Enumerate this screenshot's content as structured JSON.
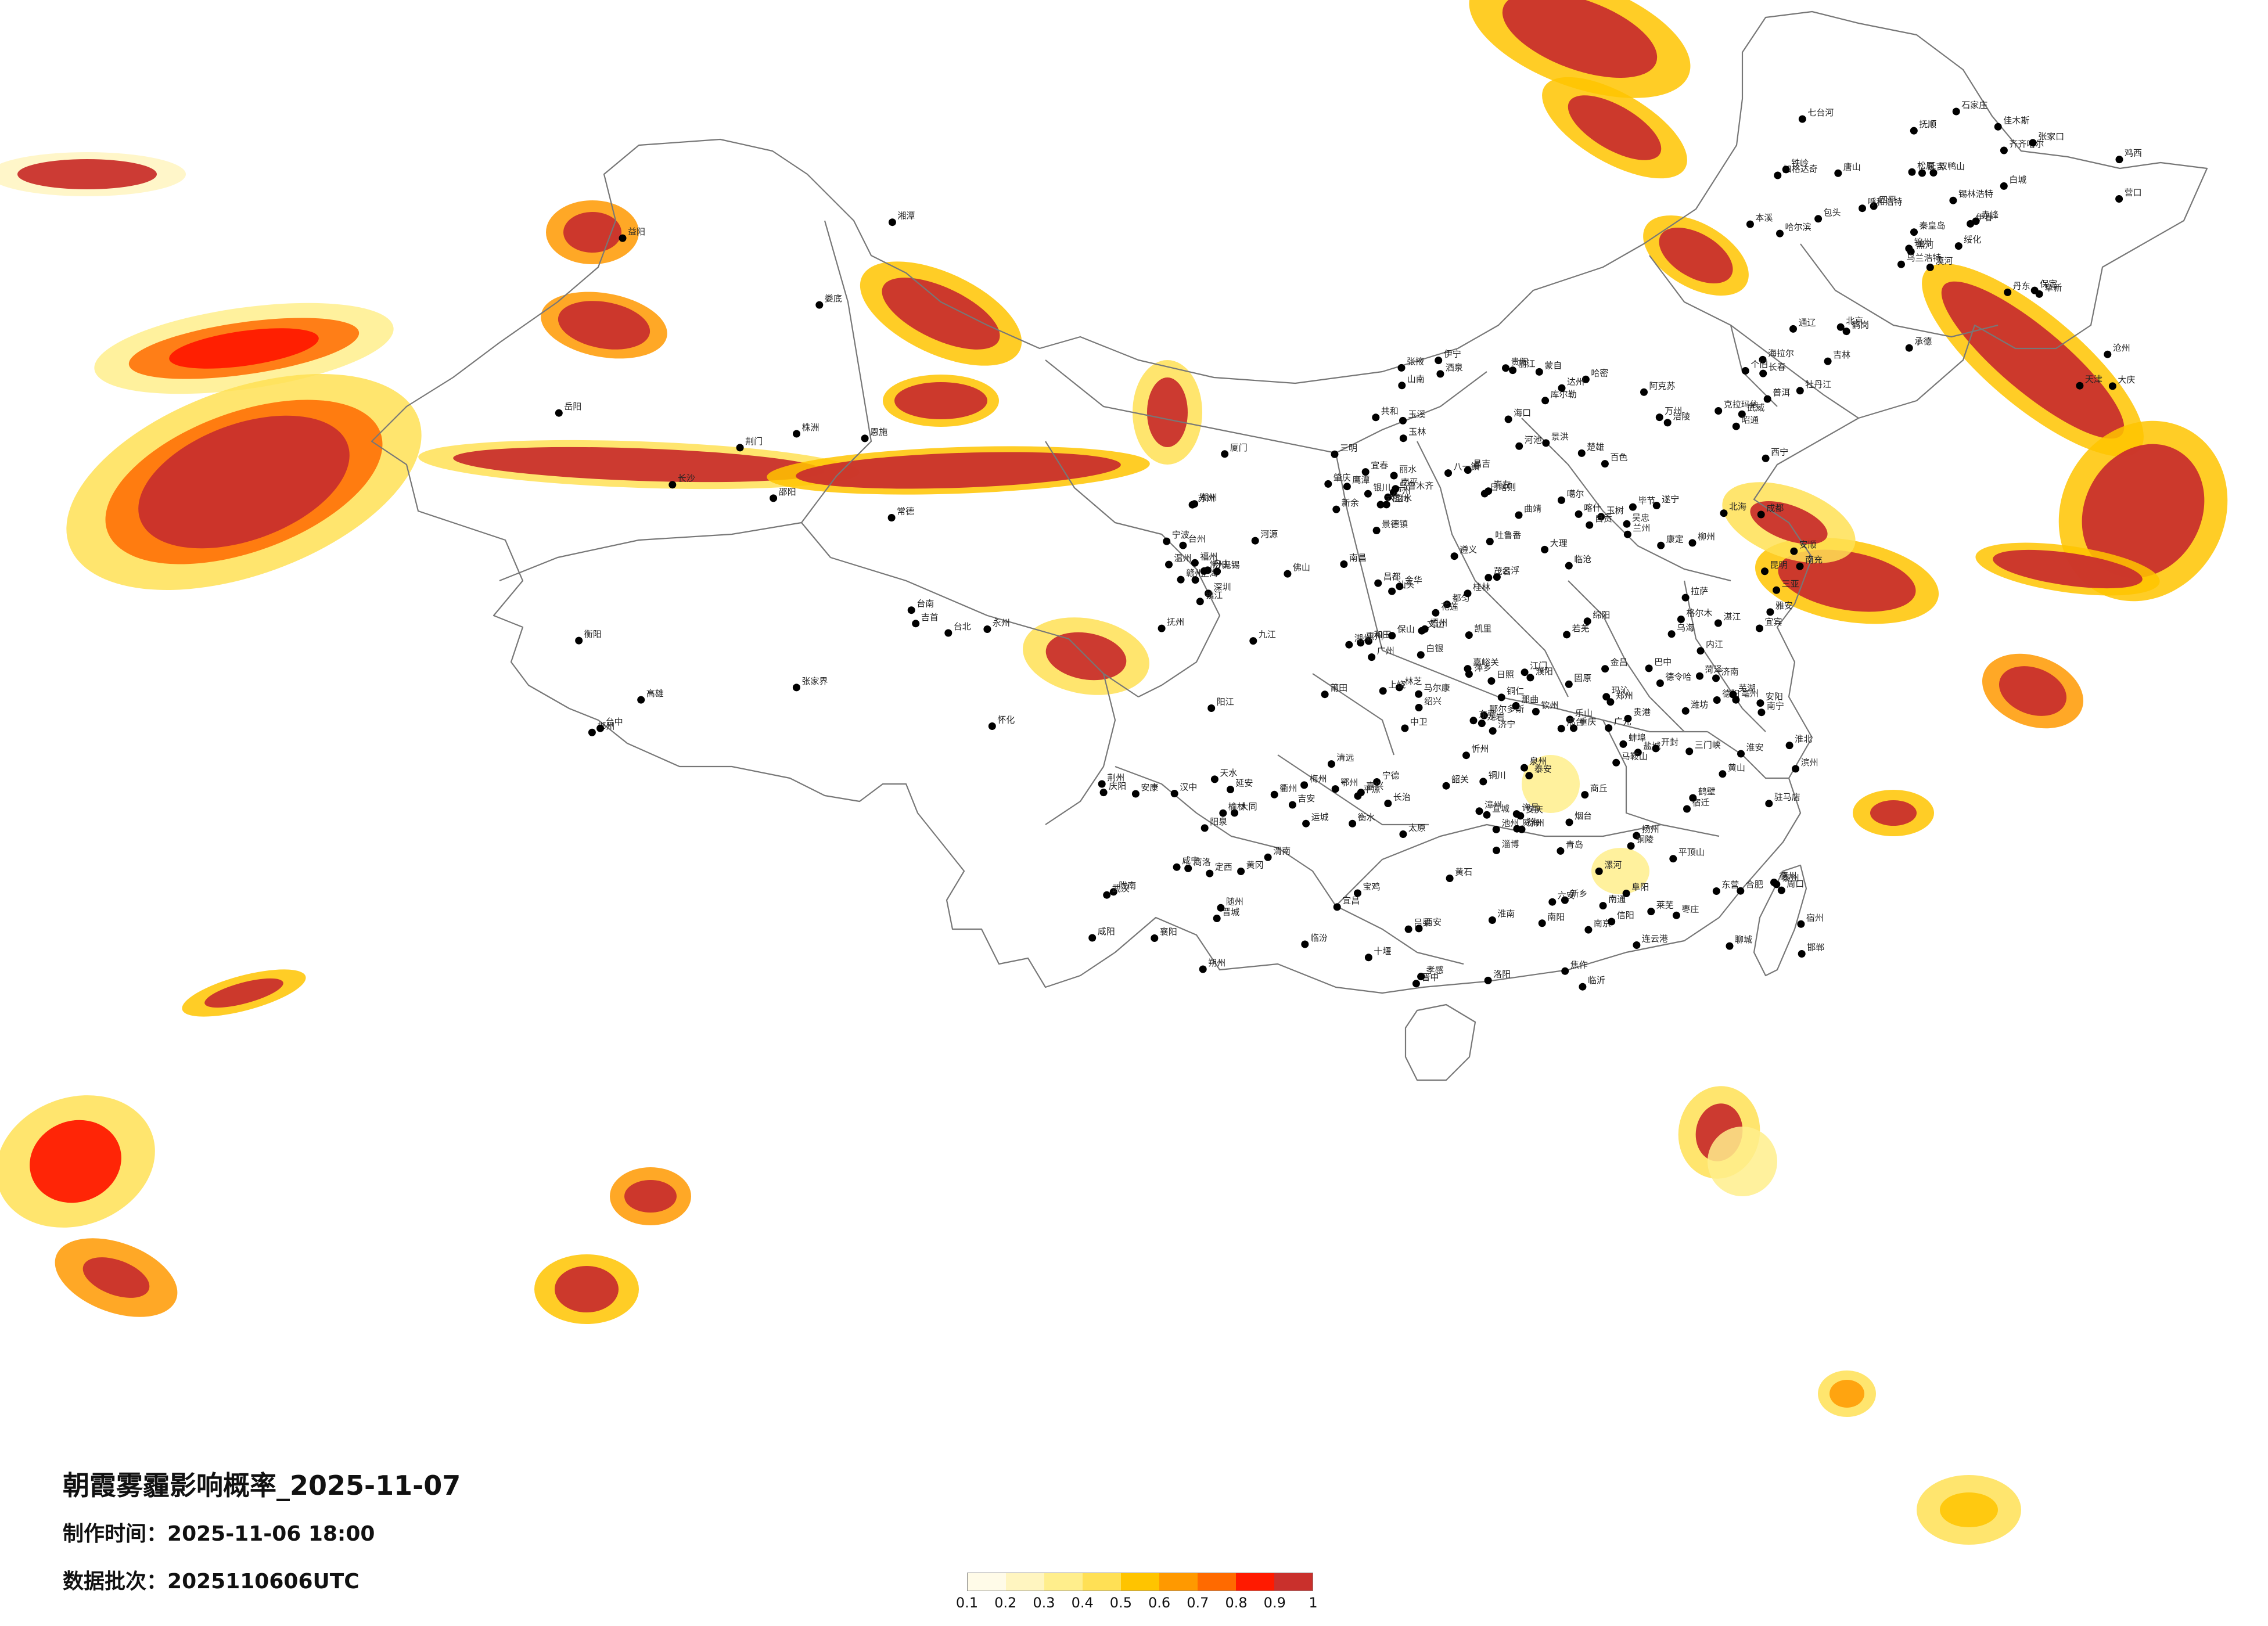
{
  "title": "朝霞雾霾影响概率_2025-11-07",
  "made_time_label": "制作时间：",
  "made_time_value": "2025-11-06 18:00",
  "batch_label": "数据批次：",
  "batch_value": "2025110606UTC",
  "legend": {
    "colors": [
      "#fffbe8",
      "#fff5c0",
      "#ffee8c",
      "#ffe055",
      "#ffc400",
      "#ff9900",
      "#ff6a00",
      "#ff1a00",
      "#c9302c"
    ],
    "ticks": [
      "0.1",
      "0.2",
      "0.3",
      "0.4",
      "0.5",
      "0.6",
      "0.7",
      "0.8",
      "0.9",
      "1"
    ]
  },
  "map": {
    "background": "#ffffff",
    "border_color": "#777777",
    "city_marker_color": "#000000",
    "cities": [
      "漠河",
      "加格达奇",
      "黑河",
      "海拉尔",
      "伊春",
      "鹤岗",
      "佳木斯",
      "双鸭山",
      "齐齐哈尔",
      "绥化",
      "七台河",
      "大庆",
      "哈尔滨",
      "鸡西",
      "乌兰浩特",
      "白城",
      "牡丹江",
      "松原",
      "锡林浩特",
      "通辽",
      "四平",
      "长春",
      "吉林",
      "延吉",
      "赤峰",
      "阜新",
      "铁岭",
      "抚顺",
      "本溪",
      "丹东",
      "营口",
      "锦州",
      "承德",
      "秦皇岛",
      "唐山",
      "张家口",
      "北京",
      "天津",
      "沧州",
      "保定",
      "石家庄",
      "呼和浩特",
      "包头",
      "乌海",
      "鄂尔多斯",
      "银川",
      "吴忠",
      "中卫",
      "固原",
      "兰州",
      "白银",
      "西宁",
      "共和",
      "格尔木",
      "德令哈",
      "嘉峪关",
      "酒泉",
      "张掖",
      "金昌",
      "武威",
      "哈密",
      "吐鲁番",
      "乌鲁木齐",
      "昌吉",
      "克拉玛依",
      "伊宁",
      "阿克苏",
      "库尔勒",
      "喀什",
      "和田",
      "若羌",
      "那曲",
      "拉萨",
      "日喀则",
      "林芝",
      "山南",
      "八一镇",
      "昌都",
      "噶尔",
      "玛沁",
      "玉树",
      "马尔康",
      "康定",
      "雅安",
      "乐山",
      "成都",
      "绵阳",
      "德阳",
      "广元",
      "巴中",
      "达州",
      "南充",
      "遂宁",
      "内江",
      "自贡",
      "宜宾",
      "泸州",
      "重庆",
      "万州",
      "涪陵",
      "遵义",
      "贵阳",
      "安顺",
      "六盘水",
      "都匀",
      "凯里",
      "铜仁",
      "毕节",
      "昭通",
      "曲靖",
      "昆明",
      "玉溪",
      "楚雄",
      "大理",
      "丽江",
      "保山",
      "临沧",
      "普洱",
      "景洪",
      "蒙自",
      "文山",
      "个旧",
      "百色",
      "河池",
      "柳州",
      "桂林",
      "南宁",
      "钦州",
      "北海",
      "玉林",
      "梧州",
      "贵港",
      "崇左",
      "海口",
      "三亚",
      "湛江",
      "茂名",
      "阳江",
      "江门",
      "佛山",
      "广州",
      "深圳",
      "东莞",
      "惠州",
      "汕头",
      "潮州",
      "梅州",
      "韶关",
      "清远",
      "肇庆",
      "云浮",
      "河源",
      "赣州",
      "吉安",
      "萍乡",
      "宜春",
      "新余",
      "南昌",
      "九江",
      "景德镇",
      "上饶",
      "鹰潭",
      "抚州",
      "三明",
      "南平",
      "福州",
      "莆田",
      "泉州",
      "厦门",
      "漳州",
      "龙岩",
      "宁德",
      "温州",
      "丽水",
      "金华",
      "衢州",
      "杭州",
      "绍兴",
      "宁波",
      "舟山",
      "台州",
      "湖州",
      "嘉兴",
      "上海",
      "苏州",
      "无锡",
      "常州",
      "镇江",
      "南京",
      "扬州",
      "泰州",
      "南通",
      "盐城",
      "淮安",
      "宿迁",
      "连云港",
      "徐州",
      "蚌埠",
      "合肥",
      "六安",
      "安庆",
      "芜湖",
      "马鞍山",
      "宣城",
      "黄山",
      "池州",
      "铜陵",
      "淮南",
      "阜阳",
      "亳州",
      "宿州",
      "淮北",
      "商丘",
      "周口",
      "驻马店",
      "信阳",
      "南阳",
      "平顶山",
      "漯河",
      "许昌",
      "郑州",
      "开封",
      "洛阳",
      "三门峡",
      "焦作",
      "新乡",
      "鹤壁",
      "安阳",
      "濮阳",
      "聊城",
      "菏泽",
      "济宁",
      "临沂",
      "日照",
      "青岛",
      "潍坊",
      "烟台",
      "威海",
      "淄博",
      "东营",
      "滨州",
      "德州",
      "济南",
      "泰安",
      "莱芜",
      "枣庄",
      "邯郸",
      "邢台",
      "衡水",
      "太原",
      "大同",
      "朔州",
      "忻州",
      "阳泉",
      "晋中",
      "长治",
      "晋城",
      "临汾",
      "运城",
      "吕梁",
      "西安",
      "宝鸡",
      "咸阳",
      "铜川",
      "渭南",
      "延安",
      "榆林",
      "汉中",
      "安康",
      "商洛",
      "天水",
      "平凉",
      "庆阳",
      "陇南",
      "定西",
      "武汉",
      "孝感",
      "黄冈",
      "鄂州",
      "黄石",
      "咸宁",
      "荆州",
      "宜昌",
      "襄阳",
      "十堰",
      "随州",
      "荆门",
      "恩施",
      "长沙",
      "株洲",
      "湘潭",
      "岳阳",
      "常德",
      "益阳",
      "娄底",
      "邵阳",
      "衡阳",
      "永州",
      "郴州",
      "怀化",
      "张家界",
      "吉首",
      "台北",
      "台中",
      "台南",
      "高雄",
      "花莲"
    ],
    "island_labels": [
      "台北",
      "台中",
      "台南",
      "高雄"
    ]
  }
}
